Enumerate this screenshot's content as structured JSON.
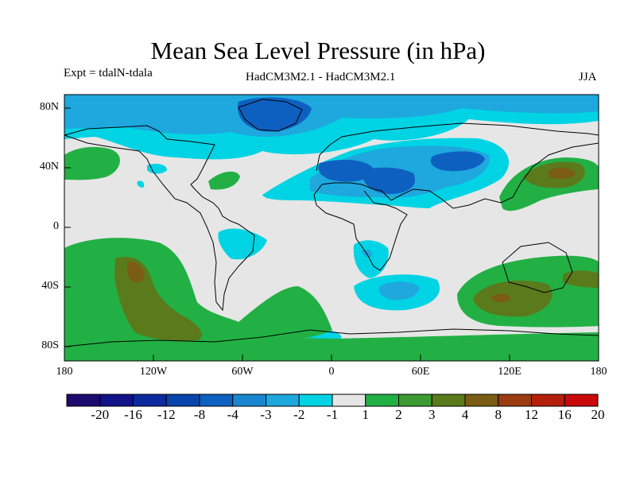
{
  "title": "Mean Sea Level Pressure (in hPa)",
  "experiment": "Expt = tdalN-tdala",
  "model": "HadCM3M2.1 - HadCM3M2.1",
  "season": "JJA",
  "lat_labels": [
    "80N",
    "40N",
    "0",
    "40S",
    "80S"
  ],
  "lon_labels": [
    "180",
    "120W",
    "60W",
    "0",
    "60E",
    "120E",
    "180"
  ],
  "colorbar": {
    "labels": [
      "-20",
      "-16",
      "-12",
      "-8",
      "-4",
      "-3",
      "-2",
      "-1",
      "1",
      "2",
      "3",
      "4",
      "8",
      "12",
      "16",
      "20"
    ],
    "colors": [
      "#1c0a6e",
      "#121289",
      "#0c2a9e",
      "#0a44ad",
      "#0e60c0",
      "#1a86cf",
      "#1ea8de",
      "#00d4e4",
      "#e6e6e6",
      "#22b045",
      "#3c9a32",
      "#5a7a1c",
      "#7a5c14",
      "#9a3c10",
      "#b4200c",
      "#c80a0a"
    ]
  },
  "colors": {
    "neutral": "#e6e6e6",
    "cyan": "#00d4e4",
    "light_blue": "#1ea8de",
    "blue": "#0e60c0",
    "green": "#22b045",
    "olive": "#5a7a1c",
    "brown": "#7a5c14"
  }
}
